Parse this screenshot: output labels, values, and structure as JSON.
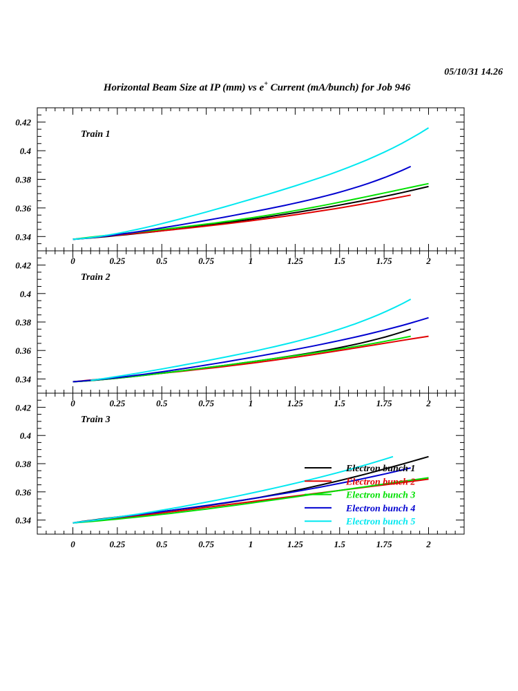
{
  "header": {
    "datetime": "05/10/31   14.26",
    "title_pre": "Horizontal Beam Size at IP (mm) vs e",
    "title_sup": "+",
    "title_post": " Current (mA/bunch) for Job 946"
  },
  "chart_data": [
    {
      "type": "line",
      "title": "Train 1",
      "xlim": [
        -0.2,
        2.2
      ],
      "ylim": [
        0.33,
        0.43
      ],
      "xticks": [
        "0",
        "0.25",
        "0.5",
        "0.75",
        "1",
        "1.25",
        "1.5",
        "1.75",
        "2"
      ],
      "yticks": [
        "0.34",
        "0.36",
        "0.38",
        "0.4",
        "0.42"
      ],
      "series": [
        {
          "name": "Electron bunch 1",
          "color": "#000000",
          "x": [
            0,
            0.5,
            1,
            1.5,
            2
          ],
          "y": [
            0.338,
            0.344,
            0.352,
            0.362,
            0.375
          ]
        },
        {
          "name": "Electron bunch 2",
          "color": "#e00000",
          "x": [
            0,
            0.5,
            1,
            1.5,
            1.9
          ],
          "y": [
            0.338,
            0.344,
            0.351,
            0.36,
            0.369
          ]
        },
        {
          "name": "Electron bunch 3",
          "color": "#00e000",
          "x": [
            0,
            0.5,
            1,
            1.5,
            2
          ],
          "y": [
            0.338,
            0.345,
            0.353,
            0.364,
            0.377
          ]
        },
        {
          "name": "Electron bunch 4",
          "color": "#0000d0",
          "x": [
            0,
            0.5,
            1,
            1.5,
            1.9
          ],
          "y": [
            0.338,
            0.346,
            0.357,
            0.371,
            0.389
          ]
        },
        {
          "name": "Electron bunch 5",
          "color": "#00e8f0",
          "x": [
            0,
            0.5,
            1,
            1.5,
            2
          ],
          "y": [
            0.338,
            0.349,
            0.366,
            0.386,
            0.416
          ]
        }
      ]
    },
    {
      "type": "line",
      "title": "Train 2",
      "xlim": [
        -0.2,
        2.2
      ],
      "ylim": [
        0.33,
        0.43
      ],
      "xticks": [
        "0",
        "0.25",
        "0.5",
        "0.75",
        "1",
        "1.25",
        "1.5",
        "1.75",
        "2"
      ],
      "yticks": [
        "0.34",
        "0.36",
        "0.38",
        "0.4",
        "0.42"
      ],
      "series": [
        {
          "name": "Electron bunch 1",
          "color": "#000000",
          "x": [
            0,
            0.5,
            1,
            1.5,
            1.9
          ],
          "y": [
            0.338,
            0.344,
            0.352,
            0.362,
            0.375
          ]
        },
        {
          "name": "Electron bunch 2",
          "color": "#e00000",
          "x": [
            0,
            0.5,
            1,
            1.5,
            2
          ],
          "y": [
            0.338,
            0.344,
            0.351,
            0.36,
            0.37
          ]
        },
        {
          "name": "Electron bunch 3",
          "color": "#00e000",
          "x": [
            0,
            0.5,
            1,
            1.5,
            1.9
          ],
          "y": [
            0.338,
            0.344,
            0.352,
            0.361,
            0.37
          ]
        },
        {
          "name": "Electron bunch 4",
          "color": "#0000d0",
          "x": [
            0,
            0.5,
            1,
            1.5,
            2
          ],
          "y": [
            0.338,
            0.345,
            0.355,
            0.367,
            0.383
          ]
        },
        {
          "name": "Electron bunch 5",
          "color": "#00e8f0",
          "x": [
            0.1,
            0.5,
            1,
            1.5,
            1.9
          ],
          "y": [
            0.339,
            0.347,
            0.359,
            0.375,
            0.396
          ]
        }
      ]
    },
    {
      "type": "line",
      "title": "Train 3",
      "xlim": [
        -0.2,
        2.2
      ],
      "ylim": [
        0.33,
        0.43
      ],
      "xticks": [
        "0",
        "0.25",
        "0.5",
        "0.75",
        "1",
        "1.25",
        "1.5",
        "1.75",
        "2"
      ],
      "yticks": [
        "0.34",
        "0.36",
        "0.38",
        "0.4",
        "0.42"
      ],
      "legend": "bottom-right",
      "series": [
        {
          "name": "Electron bunch 1",
          "color": "#000000",
          "x": [
            0,
            0.5,
            1,
            1.5,
            2
          ],
          "y": [
            0.338,
            0.346,
            0.355,
            0.368,
            0.385
          ]
        },
        {
          "name": "Electron bunch 2",
          "color": "#e00000",
          "x": [
            0,
            0.5,
            1,
            1.5,
            2
          ],
          "y": [
            0.338,
            0.345,
            0.353,
            0.361,
            0.369
          ]
        },
        {
          "name": "Electron bunch 3",
          "color": "#00e000",
          "x": [
            0,
            0.5,
            1,
            1.5,
            2
          ],
          "y": [
            0.338,
            0.344,
            0.352,
            0.361,
            0.37
          ]
        },
        {
          "name": "Electron bunch 4",
          "color": "#0000d0",
          "x": [
            0,
            0.5,
            1,
            1.5,
            1.9
          ],
          "y": [
            0.338,
            0.346,
            0.355,
            0.366,
            0.377
          ]
        },
        {
          "name": "Electron bunch 5",
          "color": "#00e8f0",
          "x": [
            0,
            0.5,
            1,
            1.5,
            1.8
          ],
          "y": [
            0.338,
            0.347,
            0.359,
            0.374,
            0.385
          ]
        }
      ]
    }
  ]
}
